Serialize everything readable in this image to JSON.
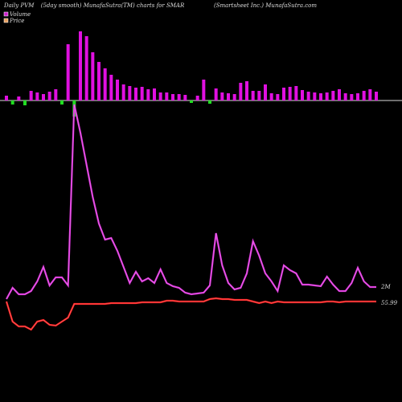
{
  "chart_data": {
    "type": "pvm",
    "title": "Daily PVM",
    "subtitle": "(5day smooth) MunafaSutra(TM) charts for SMAR",
    "company": "(Smartsheet Inc.) MunafaSutra.com",
    "ylim": [
      0,
      480
    ],
    "bars": {
      "up_color": "#e010e0",
      "down_color": "#22dd22",
      "values": [
        6,
        -5,
        5,
        -6,
        12,
        10,
        8,
        11,
        14,
        -5,
        70,
        -20,
        86,
        80,
        60,
        48,
        40,
        32,
        26,
        20,
        18,
        16,
        17,
        14,
        15,
        10,
        10,
        8,
        8,
        7,
        -3,
        6,
        26,
        -4,
        15,
        10,
        9,
        8,
        22,
        24,
        12,
        12,
        20,
        9,
        8,
        16,
        17,
        18,
        13,
        11,
        10,
        9,
        10,
        12,
        14,
        9,
        8,
        9,
        12,
        14,
        11
      ]
    },
    "series": [
      {
        "name": "Volume",
        "color": "#dd33dd",
        "legend_color": "#cc22cc",
        "end_label": "2M",
        "values": [
          108,
          122,
          114,
          114,
          118,
          130,
          148,
          125,
          135,
          135,
          125,
          350,
          315,
          275,
          235,
          202,
          182,
          184,
          168,
          148,
          128,
          142,
          130,
          134,
          128,
          145,
          128,
          124,
          122,
          116,
          114,
          115,
          116,
          125,
          190,
          150,
          128,
          120,
          122,
          140,
          180,
          162,
          140,
          130,
          118,
          150,
          144,
          140,
          126,
          126,
          125,
          124,
          136,
          126,
          118,
          118,
          128,
          147,
          130,
          123,
          123
        ]
      },
      {
        "name": "Price",
        "color": "#ff2222",
        "legend_color": "#e8a060",
        "end_label": "55.99",
        "values": [
          105,
          80,
          74,
          74,
          70,
          80,
          82,
          76,
          75,
          80,
          85,
          102,
          102,
          102,
          102,
          102,
          102,
          103,
          103,
          103,
          103,
          103,
          104,
          104,
          104,
          104,
          106,
          106,
          105,
          105,
          105,
          105,
          105,
          108,
          109,
          108,
          108,
          107,
          107,
          107,
          105,
          103,
          105,
          103,
          105,
          104,
          104,
          104,
          104,
          104,
          104,
          104,
          105,
          105,
          104,
          105,
          105,
          105,
          105,
          105,
          105
        ]
      }
    ]
  }
}
